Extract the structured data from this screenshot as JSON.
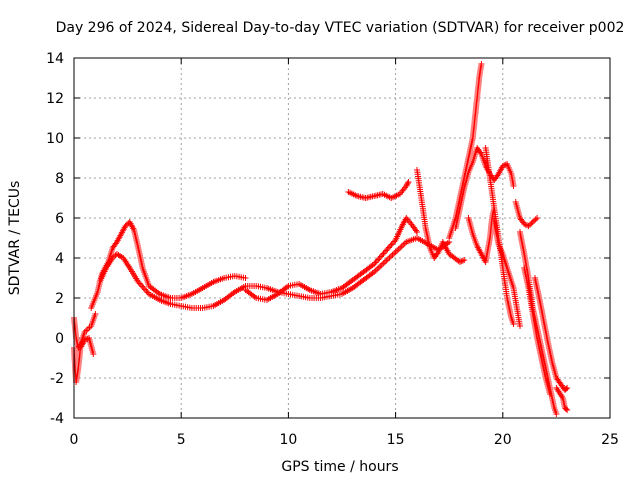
{
  "chart_data": {
    "type": "scatter",
    "title": "Day 296 of 2024, Sidereal Day-to-day VTEC variation (SDTVAR) for receiver p002",
    "xlabel": "GPS time / hours",
    "ylabel": "SDTVAR / TECUs",
    "xlim": [
      0,
      25
    ],
    "ylim": [
      -4,
      14
    ],
    "xticks": [
      0,
      5,
      10,
      15,
      20,
      25
    ],
    "yticks": [
      -4,
      -2,
      0,
      2,
      4,
      6,
      8,
      10,
      12,
      14
    ],
    "grid": true,
    "marker": "+",
    "series": [
      {
        "name": "SDTVAR",
        "color": "#ff0000",
        "tracks": [
          [
            [
              0.0,
              1.0
            ],
            [
              0.1,
              0.0
            ],
            [
              0.2,
              -0.5
            ],
            [
              0.3,
              -0.3
            ],
            [
              0.5,
              0.3
            ],
            [
              0.8,
              0.6
            ],
            [
              1.0,
              1.2
            ]
          ],
          [
            [
              0.0,
              -0.5
            ],
            [
              0.05,
              -1.5
            ],
            [
              0.1,
              -2.2
            ],
            [
              0.2,
              -1.5
            ],
            [
              0.3,
              -0.5
            ],
            [
              0.5,
              -0.1
            ],
            [
              0.7,
              0.0
            ],
            [
              0.9,
              -0.8
            ]
          ],
          [
            [
              0.8,
              1.5
            ],
            [
              1.1,
              2.3
            ],
            [
              1.3,
              3.2
            ],
            [
              1.6,
              3.8
            ],
            [
              1.8,
              4.5
            ],
            [
              2.0,
              4.8
            ],
            [
              2.2,
              5.2
            ],
            [
              2.4,
              5.6
            ],
            [
              2.6,
              5.8
            ],
            [
              2.8,
              5.4
            ],
            [
              3.0,
              4.5
            ],
            [
              3.2,
              3.5
            ],
            [
              3.5,
              2.6
            ],
            [
              4.0,
              2.2
            ],
            [
              4.5,
              2.0
            ],
            [
              5.0,
              2.0
            ],
            [
              5.5,
              2.2
            ],
            [
              6.0,
              2.5
            ],
            [
              6.5,
              2.8
            ],
            [
              7.0,
              3.0
            ],
            [
              7.5,
              3.1
            ],
            [
              8.0,
              3.0
            ]
          ],
          [
            [
              1.2,
              2.8
            ],
            [
              1.5,
              3.5
            ],
            [
              1.8,
              4.0
            ],
            [
              2.0,
              4.2
            ],
            [
              2.3,
              4.0
            ],
            [
              2.6,
              3.5
            ],
            [
              3.0,
              2.8
            ],
            [
              3.5,
              2.2
            ],
            [
              4.0,
              1.9
            ],
            [
              4.5,
              1.7
            ],
            [
              5.0,
              1.6
            ],
            [
              5.5,
              1.5
            ],
            [
              6.0,
              1.5
            ],
            [
              6.5,
              1.6
            ],
            [
              7.0,
              1.9
            ],
            [
              7.5,
              2.3
            ],
            [
              8.0,
              2.6
            ],
            [
              8.5,
              2.6
            ],
            [
              9.0,
              2.5
            ],
            [
              9.5,
              2.3
            ],
            [
              10.0,
              2.2
            ],
            [
              10.5,
              2.1
            ],
            [
              11.0,
              2.0
            ],
            [
              11.5,
              2.0
            ],
            [
              12.0,
              2.1
            ],
            [
              12.5,
              2.2
            ],
            [
              13.0,
              2.5
            ],
            [
              13.5,
              2.9
            ],
            [
              14.0,
              3.3
            ],
            [
              14.5,
              3.8
            ],
            [
              15.0,
              4.3
            ],
            [
              15.5,
              4.8
            ],
            [
              16.0,
              5.0
            ],
            [
              16.5,
              4.7
            ],
            [
              17.0,
              4.4
            ],
            [
              17.5,
              4.8
            ]
          ],
          [
            [
              8.0,
              2.4
            ],
            [
              8.5,
              2.0
            ],
            [
              9.0,
              1.9
            ],
            [
              9.5,
              2.2
            ],
            [
              10.0,
              2.6
            ],
            [
              10.5,
              2.7
            ],
            [
              11.0,
              2.4
            ],
            [
              11.5,
              2.2
            ],
            [
              12.0,
              2.3
            ],
            [
              12.5,
              2.5
            ],
            [
              13.0,
              2.9
            ],
            [
              13.5,
              3.3
            ],
            [
              14.0,
              3.7
            ],
            [
              14.5,
              4.3
            ],
            [
              15.0,
              4.9
            ],
            [
              15.3,
              5.6
            ],
            [
              15.5,
              6.0
            ],
            [
              15.8,
              5.6
            ],
            [
              16.0,
              5.3
            ]
          ],
          [
            [
              12.8,
              7.3
            ],
            [
              13.2,
              7.1
            ],
            [
              13.6,
              7.0
            ],
            [
              14.0,
              7.1
            ],
            [
              14.4,
              7.2
            ],
            [
              14.8,
              7.0
            ],
            [
              15.2,
              7.2
            ],
            [
              15.5,
              7.6
            ],
            [
              15.6,
              7.8
            ]
          ],
          [
            [
              16.0,
              8.4
            ],
            [
              16.2,
              7.0
            ],
            [
              16.4,
              5.5
            ],
            [
              16.6,
              4.5
            ],
            [
              16.8,
              4.0
            ],
            [
              17.0,
              4.3
            ],
            [
              17.2,
              4.8
            ],
            [
              17.5,
              4.2
            ],
            [
              18.0,
              3.8
            ],
            [
              18.2,
              3.9
            ]
          ],
          [
            [
              17.5,
              5.0
            ],
            [
              17.8,
              6.0
            ],
            [
              18.0,
              7.0
            ],
            [
              18.2,
              8.0
            ],
            [
              18.4,
              9.0
            ],
            [
              18.6,
              10.0
            ],
            [
              18.7,
              11.0
            ],
            [
              18.8,
              12.0
            ],
            [
              18.9,
              13.0
            ],
            [
              19.0,
              13.7
            ]
          ],
          [
            [
              17.8,
              5.5
            ],
            [
              18.0,
              6.5
            ],
            [
              18.2,
              7.5
            ],
            [
              18.4,
              8.3
            ],
            [
              18.6,
              8.8
            ],
            [
              18.8,
              9.5
            ],
            [
              19.0,
              9.2
            ],
            [
              19.2,
              8.6
            ],
            [
              19.4,
              8.2
            ],
            [
              19.6,
              7.9
            ],
            [
              19.8,
              8.2
            ],
            [
              20.0,
              8.6
            ],
            [
              20.2,
              8.7
            ],
            [
              20.4,
              8.2
            ],
            [
              20.5,
              7.6
            ]
          ],
          [
            [
              18.4,
              6.0
            ],
            [
              18.6,
              5.2
            ],
            [
              18.8,
              4.6
            ],
            [
              19.0,
              4.2
            ],
            [
              19.2,
              3.8
            ],
            [
              19.4,
              5.0
            ],
            [
              19.5,
              6.0
            ],
            [
              19.6,
              6.5
            ]
          ],
          [
            [
              19.2,
              9.5
            ],
            [
              19.4,
              8.0
            ],
            [
              19.6,
              6.5
            ],
            [
              19.8,
              5.0
            ],
            [
              20.0,
              3.5
            ],
            [
              20.2,
              2.0
            ],
            [
              20.4,
              1.0
            ],
            [
              20.5,
              0.7
            ]
          ],
          [
            [
              19.6,
              5.8
            ],
            [
              19.8,
              4.7
            ],
            [
              20.0,
              4.2
            ],
            [
              20.2,
              3.5
            ],
            [
              20.5,
              2.5
            ],
            [
              20.8,
              0.6
            ]
          ],
          [
            [
              20.6,
              6.8
            ],
            [
              20.8,
              6.0
            ],
            [
              21.0,
              5.7
            ],
            [
              21.2,
              5.6
            ],
            [
              21.4,
              5.8
            ],
            [
              21.6,
              6.0
            ]
          ],
          [
            [
              20.8,
              5.3
            ],
            [
              21.0,
              4.2
            ],
            [
              21.2,
              3.0
            ],
            [
              21.4,
              1.5
            ],
            [
              21.6,
              0.5
            ],
            [
              21.8,
              -0.5
            ],
            [
              22.0,
              -1.5
            ],
            [
              22.2,
              -2.5
            ],
            [
              22.4,
              -3.5
            ],
            [
              22.5,
              -3.8
            ]
          ],
          [
            [
              21.0,
              3.5
            ],
            [
              21.2,
              2.5
            ],
            [
              21.4,
              1.2
            ],
            [
              21.6,
              0.0
            ],
            [
              21.8,
              -1.0
            ],
            [
              22.0,
              -2.0
            ],
            [
              22.2,
              -2.8
            ]
          ],
          [
            [
              21.5,
              3.0
            ],
            [
              21.7,
              2.0
            ],
            [
              21.9,
              0.9
            ],
            [
              22.1,
              -0.2
            ],
            [
              22.3,
              -1.2
            ],
            [
              22.5,
              -2.0
            ],
            [
              22.7,
              -2.3
            ],
            [
              22.9,
              -2.6
            ],
            [
              23.0,
              -2.5
            ]
          ],
          [
            [
              22.5,
              -2.5
            ],
            [
              22.8,
              -3.0
            ],
            [
              22.9,
              -3.5
            ],
            [
              23.0,
              -3.6
            ]
          ]
        ]
      }
    ]
  }
}
